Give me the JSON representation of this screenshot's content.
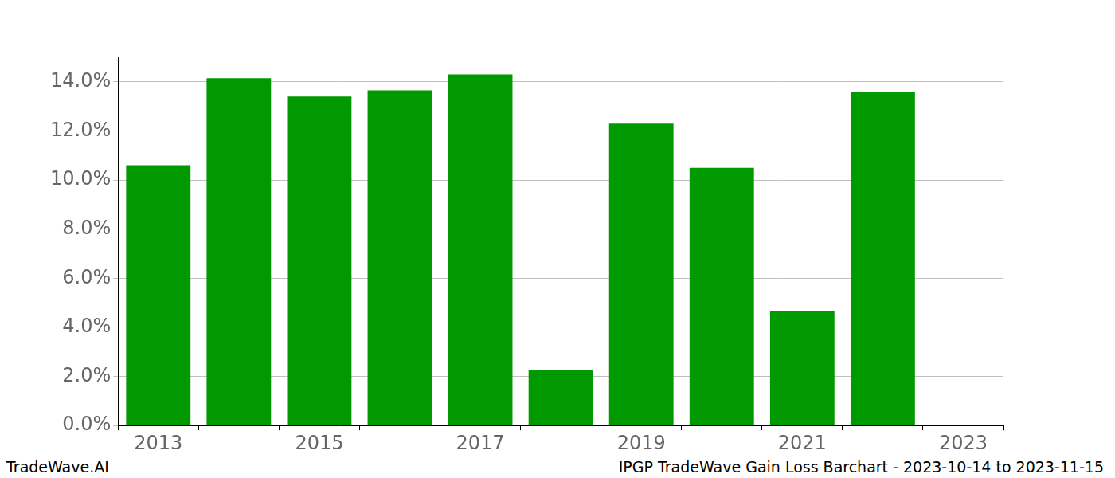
{
  "chart_data": {
    "type": "bar",
    "title": "IPGP TradeWave Gain Loss Barchart - 2023-10-14 to 2023-11-15",
    "source": "TradeWave.AI",
    "categories": [
      "2013",
      null,
      "2015",
      null,
      "2017",
      null,
      "2019",
      null,
      "2021",
      null,
      "2023"
    ],
    "values": [
      10.6,
      14.15,
      13.4,
      13.65,
      14.3,
      2.25,
      12.3,
      10.5,
      4.65,
      13.6,
      null
    ],
    "color": "#009900",
    "ylim": [
      0,
      15
    ],
    "yticks": [
      {
        "value": 0,
        "label": "0.0%"
      },
      {
        "value": 2,
        "label": "2.0%"
      },
      {
        "value": 4,
        "label": "4.0%"
      },
      {
        "value": 6,
        "label": "6.0%"
      },
      {
        "value": 8,
        "label": "8.0%"
      },
      {
        "value": 10,
        "label": "10.0%"
      },
      {
        "value": 12,
        "label": "12.0%"
      },
      {
        "value": 14,
        "label": "14.0%"
      }
    ],
    "grid": true
  }
}
